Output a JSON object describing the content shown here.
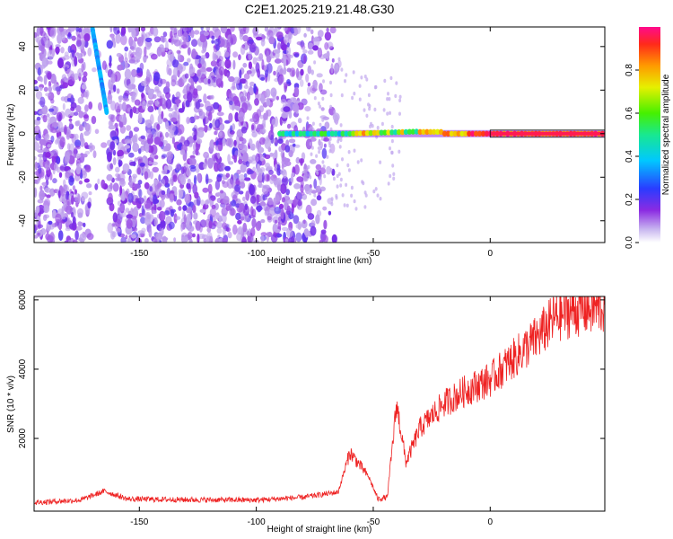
{
  "title": "C2E1.2025.219.21.48.G30",
  "chart_data": [
    {
      "type": "heatmap",
      "xlabel": "Height of straight line (km)",
      "ylabel": "Frequency (Hz)",
      "xlim": [
        -195,
        49
      ],
      "ylim": [
        -50,
        49
      ],
      "x_ticks": [
        -150,
        -100,
        -50,
        0
      ],
      "y_ticks": [
        -40,
        -20,
        0,
        20,
        40
      ],
      "grid": false,
      "colorbar": {
        "label": "Normalized spectral amplitude",
        "range": [
          0,
          1
        ],
        "ticks": [
          "0.0",
          "0.2",
          "0.4",
          "0.6",
          "0.8"
        ],
        "colormap": "rainbow-white-to-magenta"
      },
      "features": {
        "noise_region_x": [
          -195,
          -78
        ],
        "streak_start": {
          "x": -170,
          "y": 48
        },
        "streak_end": {
          "x": -164,
          "y": 10
        },
        "carrier_line_x": [
          -90,
          49
        ],
        "carrier_frequency": 0
      }
    },
    {
      "type": "line",
      "xlabel": "Height of straight line (km)",
      "ylabel": "SNR (10 * v/v)",
      "xlim": [
        -195,
        49
      ],
      "ylim": [
        -100,
        6100
      ],
      "x_ticks": [
        -150,
        -100,
        -50,
        0
      ],
      "y_ticks": [
        2000,
        4000,
        6000
      ],
      "grid": false,
      "series": [
        {
          "color": "#ee2222",
          "envelope": [
            [
              -195,
              150
            ],
            [
              -175,
              220
            ],
            [
              -165,
              480
            ],
            [
              -155,
              250
            ],
            [
              -130,
              230
            ],
            [
              -100,
              220
            ],
            [
              -80,
              300
            ],
            [
              -65,
              450
            ],
            [
              -60,
              1600
            ],
            [
              -52,
              900
            ],
            [
              -48,
              250
            ],
            [
              -44,
              300
            ],
            [
              -40,
              3000
            ],
            [
              -36,
              1300
            ],
            [
              -30,
              2300
            ],
            [
              -20,
              3000
            ],
            [
              -10,
              3400
            ],
            [
              0,
              3700
            ],
            [
              10,
              4300
            ],
            [
              20,
              4900
            ],
            [
              28,
              5500
            ],
            [
              35,
              5700
            ],
            [
              49,
              5800
            ]
          ]
        }
      ]
    }
  ]
}
